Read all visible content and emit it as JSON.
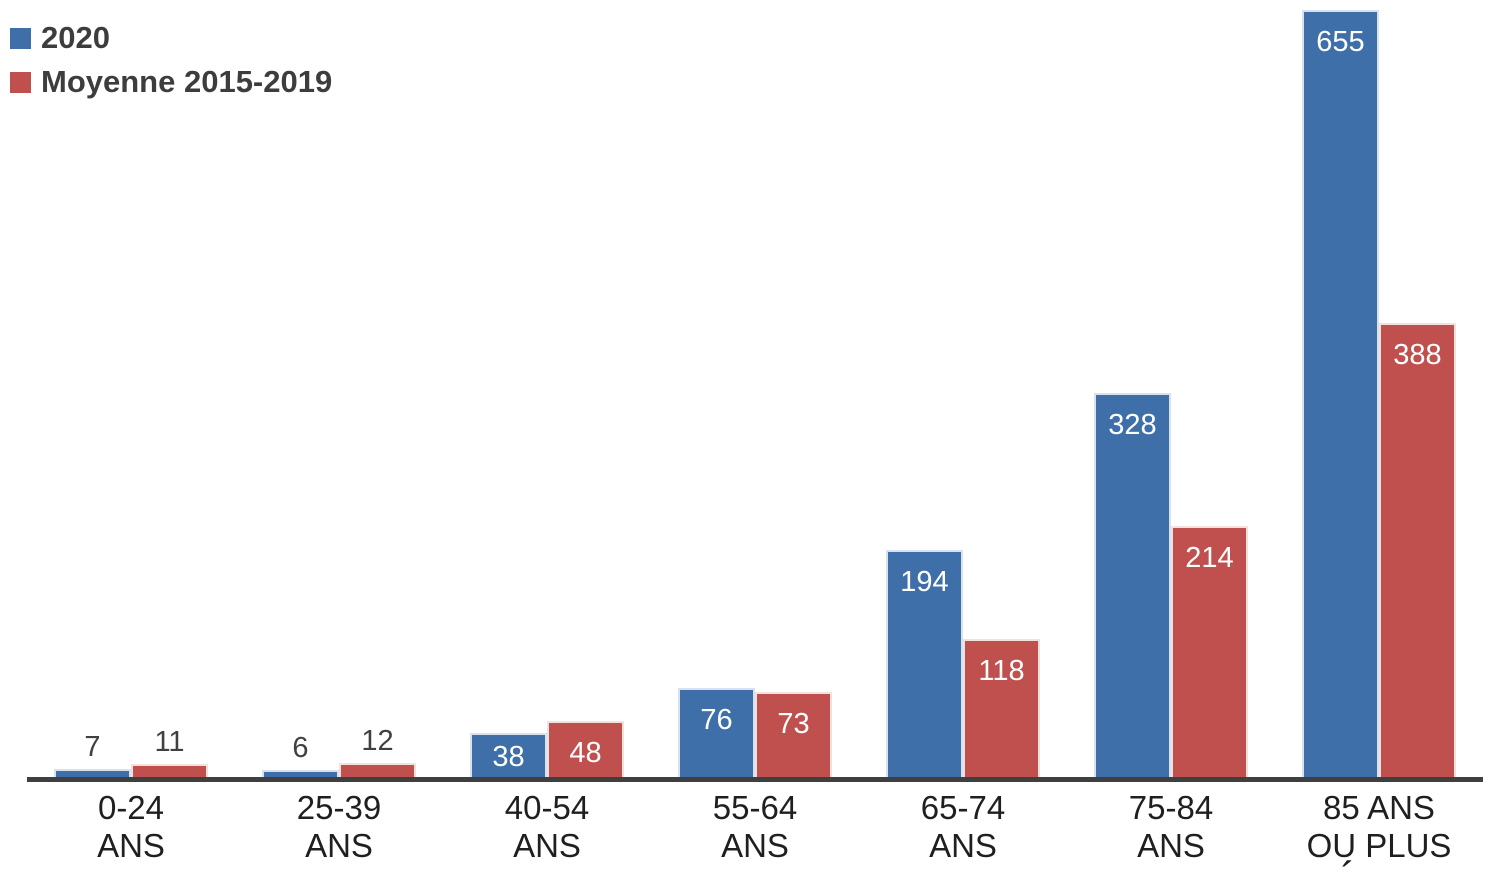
{
  "chart_data": {
    "type": "bar",
    "title": "",
    "xlabel": "",
    "ylabel": "",
    "grid": false,
    "y_axis_visible": false,
    "legend_position": "top-left",
    "ylim": [
      0,
      700
    ],
    "bar_value_labels": true,
    "categories": [
      {
        "label": "0-24 ANS",
        "lines": [
          "0-24",
          "ANS"
        ]
      },
      {
        "label": "25-39 ANS",
        "lines": [
          "25-39",
          "ANS"
        ]
      },
      {
        "label": "40-54 ANS",
        "lines": [
          "40-54",
          "ANS"
        ]
      },
      {
        "label": "55-64 ANS",
        "lines": [
          "55-64",
          "ANS"
        ]
      },
      {
        "label": "65-74 ANS",
        "lines": [
          "65-74",
          "ANS"
        ]
      },
      {
        "label": "75-84 ANS",
        "lines": [
          "75-84",
          "ANS"
        ]
      },
      {
        "label": "85 ANS OU PLUS",
        "lines": [
          "85 ANS",
          "OU PLUS"
        ]
      }
    ],
    "series": [
      {
        "name": "2020",
        "color": "#3e6fa8",
        "values": [
          7,
          6,
          38,
          76,
          194,
          328,
          655
        ]
      },
      {
        "name": "Moyenne 2015-2019",
        "color": "#c0504d",
        "values": [
          11,
          12,
          48,
          73,
          118,
          214,
          388
        ]
      }
    ]
  },
  "legend": {
    "items": [
      {
        "label": "2020",
        "color": "#3e6fa8"
      },
      {
        "label": "Moyenne 2015-2019",
        "color": "#c0504d"
      }
    ]
  },
  "colors": {
    "series_2020": "#3e6fa8",
    "series_moyenne": "#c0504d",
    "axis_line": "#3f3f3f",
    "label_dark": "#404040",
    "category_text": "#1f1f1f",
    "label_inside": "#ffffff"
  },
  "bottom_cutoff_text": "´"
}
